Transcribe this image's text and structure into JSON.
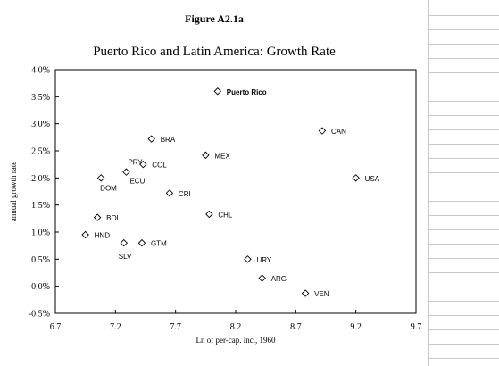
{
  "figure_label": "Figure A2.1a",
  "chart_data": {
    "type": "scatter",
    "title": "Puerto Rico and Latin America: Growth Rate",
    "xlabel": "Ln of per-cap. inc., 1960",
    "ylabel": "annual growth rate",
    "xlim": [
      6.7,
      9.7
    ],
    "ylim": [
      -0.5,
      4.0
    ],
    "x_ticks": [
      6.7,
      7.2,
      7.7,
      8.2,
      8.7,
      9.2,
      9.7
    ],
    "x_tick_labels": [
      "6.7",
      "7.2",
      "7.7",
      "8.2",
      "8.7",
      "9.2",
      "9.7"
    ],
    "y_ticks": [
      -0.5,
      0.0,
      0.5,
      1.0,
      1.5,
      2.0,
      2.5,
      3.0,
      3.5,
      4.0
    ],
    "y_tick_labels": [
      "-0.5%",
      "0.0%",
      "0.5%",
      "1.0%",
      "1.5%",
      "2.0%",
      "2.5%",
      "3.0%",
      "3.5%",
      "4.0%"
    ],
    "grid": false,
    "marker": "diamond",
    "points": [
      {
        "label": "Puerto Rico",
        "x": 8.05,
        "y": 3.6,
        "label_pos": "right",
        "bold": true
      },
      {
        "label": "CAN",
        "x": 8.92,
        "y": 2.87,
        "label_pos": "right"
      },
      {
        "label": "BRA",
        "x": 7.5,
        "y": 2.72,
        "label_pos": "right"
      },
      {
        "label": "MEX",
        "x": 7.95,
        "y": 2.42,
        "label_pos": "right"
      },
      {
        "label": "COL",
        "x": 7.43,
        "y": 2.25,
        "label_pos": "right"
      },
      {
        "label": "PRY",
        "x": 7.29,
        "y": 2.11,
        "label_pos": "upper-left"
      },
      {
        "label": "ECU",
        "x": 7.29,
        "y": 2.11,
        "label_pos": "lower-right"
      },
      {
        "label": "DOM",
        "x": 7.08,
        "y": 2.0,
        "label_pos": "below-right"
      },
      {
        "label": "USA",
        "x": 9.2,
        "y": 2.0,
        "label_pos": "right"
      },
      {
        "label": "CRI",
        "x": 7.65,
        "y": 1.72,
        "label_pos": "right"
      },
      {
        "label": "CHL",
        "x": 7.98,
        "y": 1.33,
        "label_pos": "right"
      },
      {
        "label": "BOL",
        "x": 7.05,
        "y": 1.27,
        "label_pos": "right"
      },
      {
        "label": "HND",
        "x": 6.95,
        "y": 0.95,
        "label_pos": "right"
      },
      {
        "label": "GTM",
        "x": 7.42,
        "y": 0.8,
        "label_pos": "right"
      },
      {
        "label": "SLV",
        "x": 7.27,
        "y": 0.8,
        "label_pos": "below"
      },
      {
        "label": "URY",
        "x": 8.3,
        "y": 0.5,
        "label_pos": "right"
      },
      {
        "label": "ARG",
        "x": 8.42,
        "y": 0.15,
        "label_pos": "right"
      },
      {
        "label": "VEN",
        "x": 8.78,
        "y": -0.13,
        "label_pos": "right"
      }
    ]
  }
}
